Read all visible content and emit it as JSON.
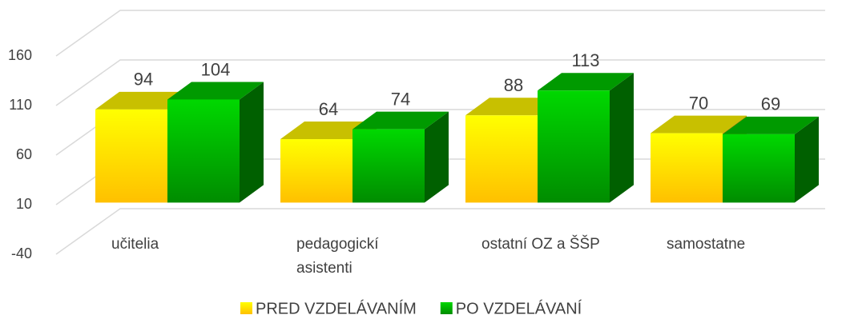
{
  "chart_data": {
    "type": "bar3d",
    "categories": [
      "učitelia",
      "pedagogickí asistenti",
      "ostatní OZ a ŠŠP",
      "samostatne"
    ],
    "series": [
      {
        "name": "PRED VZDELÁVANÍM",
        "color": "#ffff00",
        "values": [
          94,
          64,
          88,
          70
        ]
      },
      {
        "name": "PO VZDELÁVANÍ",
        "color": "#00c800",
        "values": [
          104,
          74,
          113,
          69
        ]
      }
    ],
    "ylim": [
      -40,
      160
    ],
    "yticks": [
      -40,
      10,
      60,
      110,
      160
    ],
    "grid": true,
    "legend": "bottom"
  }
}
